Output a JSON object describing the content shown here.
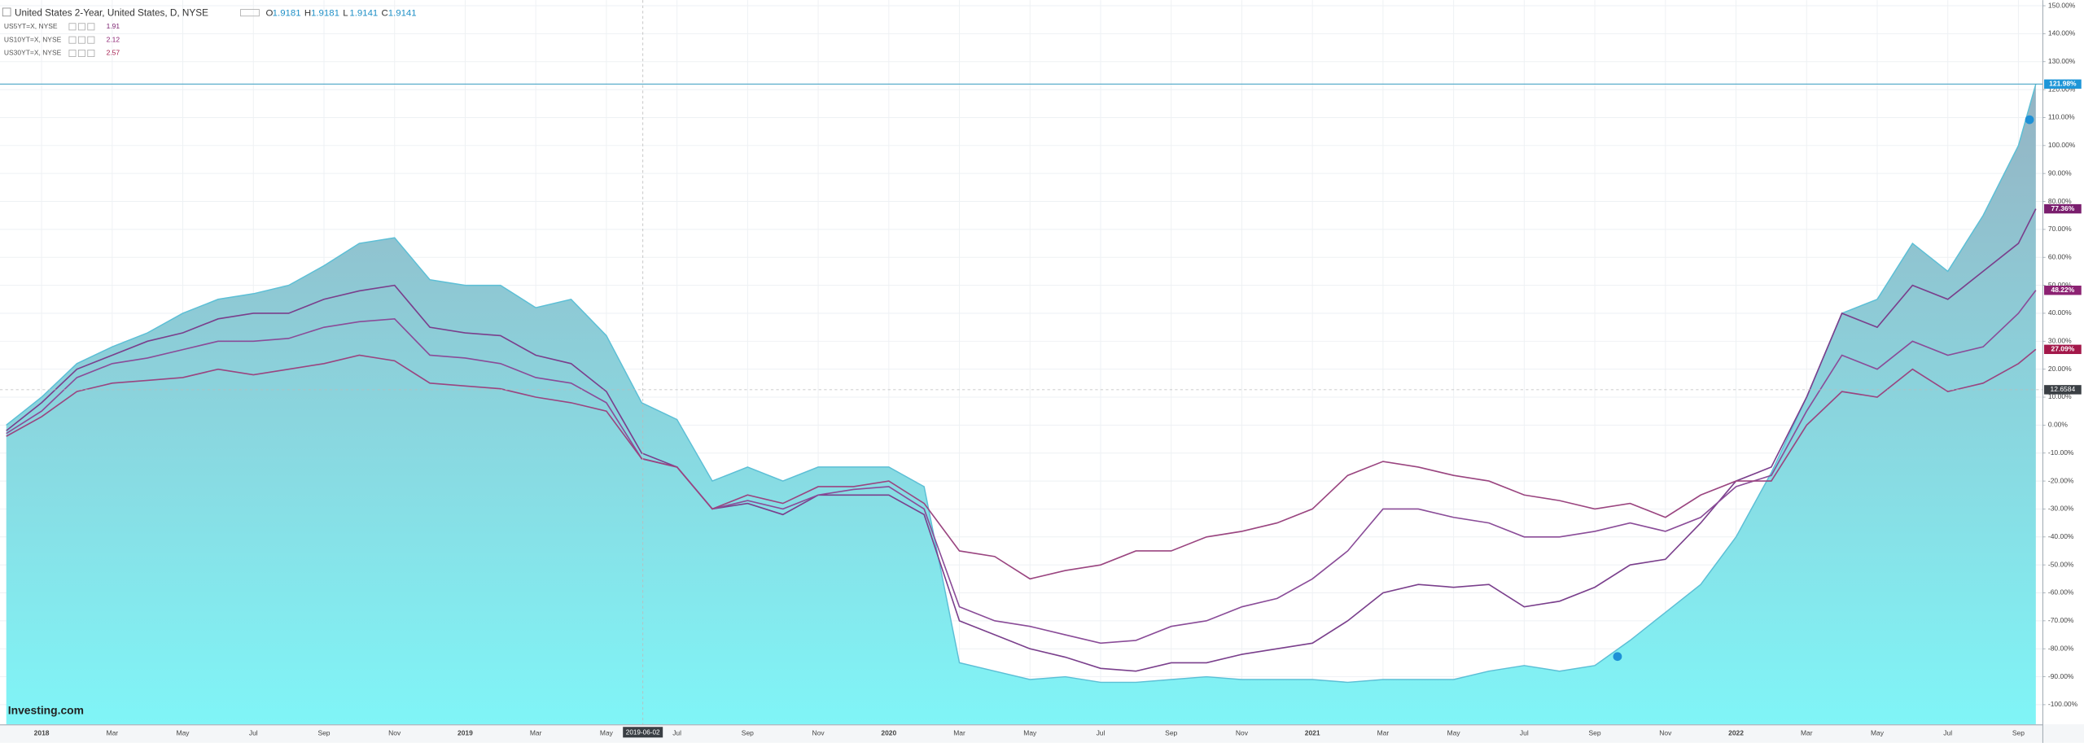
{
  "header": {
    "title": "United States 2-Year, United States, D, NYSE",
    "ohlc": [
      {
        "label": "O",
        "value": 1.9181
      },
      {
        "label": "H",
        "value": 1.9181
      },
      {
        "label": "L",
        "value": 1.9141
      },
      {
        "label": "C",
        "value": 1.9141
      }
    ],
    "legend": [
      {
        "name": "US5YT=X, NYSE",
        "value": 1.91
      },
      {
        "name": "US10YT=X, NYSE",
        "value": 2.12
      },
      {
        "name": "US30YT=X, NYSE",
        "value": 2.57
      }
    ],
    "logo": "Investing.com"
  },
  "chart_data": {
    "type": "line",
    "x": [
      "2017-12",
      "2018-01",
      "2018-02",
      "2018-03",
      "2018-04",
      "2018-05",
      "2018-06",
      "2018-07",
      "2018-08",
      "2018-09",
      "2018-10",
      "2018-11",
      "2018-12",
      "2019-01",
      "2019-02",
      "2019-03",
      "2019-04",
      "2019-05",
      "2019-06",
      "2019-07",
      "2019-08",
      "2019-09",
      "2019-10",
      "2019-11",
      "2019-12",
      "2020-01",
      "2020-02",
      "2020-03",
      "2020-04",
      "2020-05",
      "2020-06",
      "2020-07",
      "2020-08",
      "2020-09",
      "2020-10",
      "2020-11",
      "2020-12",
      "2021-01",
      "2021-02",
      "2021-03",
      "2021-04",
      "2021-05",
      "2021-06",
      "2021-07",
      "2021-08",
      "2021-09",
      "2021-10",
      "2021-11",
      "2021-12",
      "2022-01",
      "2022-02",
      "2022-03",
      "2022-04",
      "2022-05",
      "2022-06",
      "2022-07",
      "2022-08",
      "2022-09",
      "2022-09-16"
    ],
    "series": [
      {
        "name": "United States 2-Year",
        "kind": "area",
        "color": "#5cbfd6",
        "fill_top": "#95b3c3",
        "fill_bottom": "#80f5f7",
        "end_label": "121.98%",
        "values": [
          0,
          10,
          22,
          28,
          33,
          40,
          45,
          47,
          50,
          57,
          65,
          67,
          52,
          50,
          50,
          42,
          45,
          32,
          8,
          2,
          -20,
          -15,
          -20,
          -15,
          -15,
          -15,
          -22,
          -85,
          -88,
          -91,
          -90,
          -92,
          -92,
          -91,
          -90,
          -91,
          -91,
          -91,
          -92,
          -91,
          -91,
          -91,
          -88,
          -86,
          -88,
          -86,
          -77,
          -67,
          -57,
          -40,
          -17,
          10,
          40,
          45,
          65,
          55,
          75,
          100,
          121.98
        ]
      },
      {
        "name": "US5YT=X, NYSE",
        "kind": "line",
        "color": "#7a3f8c",
        "end_label": "77.36%",
        "label_bg": "#7a1e6e",
        "values": [
          -2,
          8,
          20,
          25,
          30,
          33,
          38,
          40,
          40,
          45,
          48,
          50,
          35,
          33,
          32,
          25,
          22,
          12,
          -10,
          -15,
          -30,
          -28,
          -32,
          -25,
          -25,
          -25,
          -32,
          -70,
          -75,
          -80,
          -83,
          -87,
          -88,
          -85,
          -85,
          -82,
          -80,
          -78,
          -70,
          -60,
          -57,
          -58,
          -57,
          -65,
          -63,
          -58,
          -50,
          -48,
          -35,
          -20,
          -15,
          10,
          40,
          35,
          50,
          45,
          55,
          65,
          77.36
        ]
      },
      {
        "name": "US10YT=X, NYSE",
        "kind": "line",
        "color": "#8a4c98",
        "end_label": "48.22%",
        "label_bg": "#8c2272",
        "values": [
          -3,
          5,
          17,
          22,
          24,
          27,
          30,
          30,
          31,
          35,
          37,
          38,
          25,
          24,
          22,
          17,
          15,
          8,
          -12,
          -15,
          -30,
          -27,
          -30,
          -25,
          -23,
          -22,
          -30,
          -65,
          -70,
          -72,
          -75,
          -78,
          -77,
          -72,
          -70,
          -65,
          -62,
          -55,
          -45,
          -30,
          -30,
          -33,
          -35,
          -40,
          -40,
          -38,
          -35,
          -38,
          -33,
          -22,
          -18,
          5,
          25,
          20,
          30,
          25,
          28,
          40,
          48.22
        ]
      },
      {
        "name": "US30YT=X, NYSE",
        "kind": "line",
        "color": "#9a4580",
        "end_label": "27.09%",
        "label_bg": "#a3184a",
        "values": [
          -4,
          3,
          12,
          15,
          16,
          17,
          20,
          18,
          20,
          22,
          25,
          23,
          15,
          14,
          13,
          10,
          8,
          5,
          -12,
          -15,
          -30,
          -25,
          -28,
          -22,
          -22,
          -20,
          -28,
          -45,
          -47,
          -55,
          -52,
          -50,
          -45,
          -45,
          -40,
          -38,
          -35,
          -30,
          -18,
          -13,
          -15,
          -18,
          -20,
          -25,
          -27,
          -30,
          -28,
          -33,
          -25,
          -20,
          -20,
          0,
          12,
          10,
          20,
          12,
          15,
          22,
          27.09
        ]
      }
    ],
    "xlim": [
      "2017-11-26",
      "2022-09-22"
    ],
    "xticks": [
      {
        "value": "2018-01",
        "label": "2018"
      },
      {
        "value": "2018-03",
        "label": "Mar"
      },
      {
        "value": "2018-05",
        "label": "May"
      },
      {
        "value": "2018-07",
        "label": "Jul"
      },
      {
        "value": "2018-09",
        "label": "Sep"
      },
      {
        "value": "2018-11",
        "label": "Nov"
      },
      {
        "value": "2019-01",
        "label": "2019"
      },
      {
        "value": "2019-03",
        "label": "Mar"
      },
      {
        "value": "2019-05",
        "label": "May"
      },
      {
        "value": "2019-07",
        "label": "Jul"
      },
      {
        "value": "2019-09",
        "label": "Sep"
      },
      {
        "value": "2019-11",
        "label": "Nov"
      },
      {
        "value": "2020-01",
        "label": "2020"
      },
      {
        "value": "2020-03",
        "label": "Mar"
      },
      {
        "value": "2020-05",
        "label": "May"
      },
      {
        "value": "2020-07",
        "label": "Jul"
      },
      {
        "value": "2020-09",
        "label": "Sep"
      },
      {
        "value": "2020-11",
        "label": "Nov"
      },
      {
        "value": "2021-01",
        "label": "2021"
      },
      {
        "value": "2021-03",
        "label": "Mar"
      },
      {
        "value": "2021-05",
        "label": "May"
      },
      {
        "value": "2021-07",
        "label": "Jul"
      },
      {
        "value": "2021-09",
        "label": "Sep"
      },
      {
        "value": "2021-11",
        "label": "Nov"
      },
      {
        "value": "2022-01",
        "label": "2022"
      },
      {
        "value": "2022-03",
        "label": "Mar"
      },
      {
        "value": "2022-05",
        "label": "May"
      },
      {
        "value": "2022-07",
        "label": "Jul"
      },
      {
        "value": "2022-09",
        "label": "Sep"
      }
    ],
    "ylim": [
      -107,
      152
    ],
    "yticks": [
      {
        "value": 150,
        "label": "150.00%"
      },
      {
        "value": 140,
        "label": "140.00%"
      },
      {
        "value": 130,
        "label": "130.00%"
      },
      {
        "value": 120,
        "label": "120.00%"
      },
      {
        "value": 110,
        "label": "110.00%"
      },
      {
        "value": 100,
        "label": "100.00%"
      },
      {
        "value": 90,
        "label": "90.00%"
      },
      {
        "value": 80,
        "label": "80.00%"
      },
      {
        "value": 70,
        "label": "70.00%"
      },
      {
        "value": 60,
        "label": "60.00%"
      },
      {
        "value": 50,
        "label": "50.00%"
      },
      {
        "value": 40,
        "label": "40.00%"
      },
      {
        "value": 30,
        "label": "30.00%"
      },
      {
        "value": 20,
        "label": "20.00%"
      },
      {
        "value": 10,
        "label": "10.00%"
      },
      {
        "value": 0,
        "label": "0.00%"
      },
      {
        "value": -10,
        "label": "-10.00%"
      },
      {
        "value": -20,
        "label": "-20.00%"
      },
      {
        "value": -30,
        "label": "-30.00%"
      },
      {
        "value": -40,
        "label": "-40.00%"
      },
      {
        "value": -50,
        "label": "-50.00%"
      },
      {
        "value": -60,
        "label": "-60.00%"
      },
      {
        "value": -70,
        "label": "-70.00%"
      },
      {
        "value": -80,
        "label": "-80.00%"
      },
      {
        "value": -90,
        "label": "-90.00%"
      },
      {
        "value": -100,
        "label": "-100.00%"
      }
    ],
    "grid": true,
    "crosshair": {
      "x": "2019-06-02",
      "y": 12.6584
    }
  }
}
